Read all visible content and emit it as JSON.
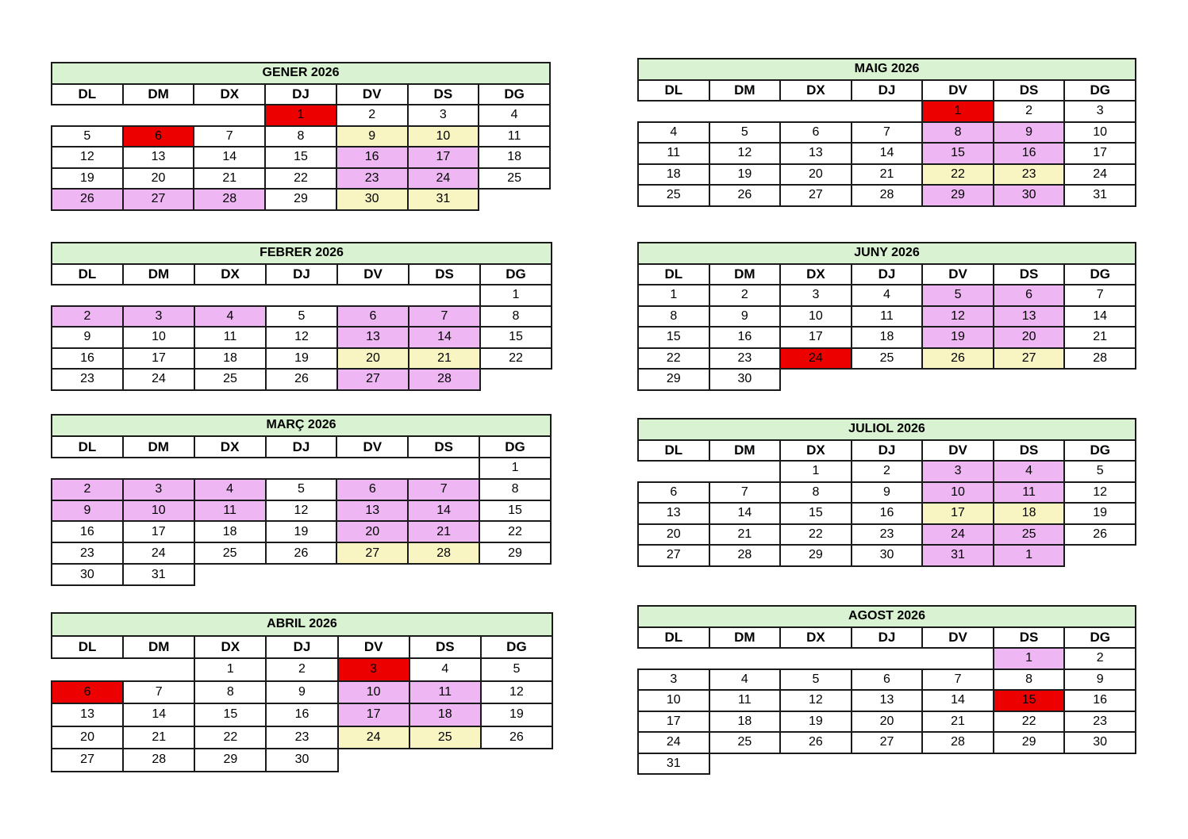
{
  "colors": {
    "holiday": "#ec0000",
    "pink": "#efb6f4",
    "yellow": "#f9f5c2",
    "header": "#d9f2d2"
  },
  "day_headers": [
    "DL",
    "DM",
    "DX",
    "DJ",
    "DV",
    "DS",
    "DG"
  ],
  "months": [
    {
      "title": "GENER 2026",
      "weeks": [
        [
          null,
          null,
          null,
          {
            "d": "1",
            "c": "red"
          },
          {
            "d": "2"
          },
          {
            "d": "3"
          },
          {
            "d": "4"
          }
        ],
        [
          {
            "d": "5"
          },
          {
            "d": "6",
            "c": "red"
          },
          {
            "d": "7"
          },
          {
            "d": "8"
          },
          {
            "d": "9",
            "c": "yellow"
          },
          {
            "d": "10",
            "c": "yellow"
          },
          {
            "d": "11"
          }
        ],
        [
          {
            "d": "12"
          },
          {
            "d": "13"
          },
          {
            "d": "14"
          },
          {
            "d": "15"
          },
          {
            "d": "16",
            "c": "pink"
          },
          {
            "d": "17",
            "c": "pink"
          },
          {
            "d": "18"
          }
        ],
        [
          {
            "d": "19"
          },
          {
            "d": "20"
          },
          {
            "d": "21"
          },
          {
            "d": "22"
          },
          {
            "d": "23",
            "c": "pink"
          },
          {
            "d": "24",
            "c": "pink"
          },
          {
            "d": "25"
          }
        ],
        [
          {
            "d": "26",
            "c": "pink"
          },
          {
            "d": "27",
            "c": "pink"
          },
          {
            "d": "28",
            "c": "pink"
          },
          {
            "d": "29"
          },
          {
            "d": "30",
            "c": "yellow"
          },
          {
            "d": "31",
            "c": "yellow"
          },
          null
        ]
      ]
    },
    {
      "title": "FEBRER 2026",
      "weeks": [
        [
          null,
          null,
          null,
          null,
          null,
          null,
          {
            "d": "1"
          }
        ],
        [
          {
            "d": "2",
            "c": "pink"
          },
          {
            "d": "3",
            "c": "pink"
          },
          {
            "d": "4",
            "c": "pink"
          },
          {
            "d": "5"
          },
          {
            "d": "6",
            "c": "pink"
          },
          {
            "d": "7",
            "c": "pink"
          },
          {
            "d": "8"
          }
        ],
        [
          {
            "d": "9"
          },
          {
            "d": "10"
          },
          {
            "d": "11"
          },
          {
            "d": "12"
          },
          {
            "d": "13",
            "c": "pink"
          },
          {
            "d": "14",
            "c": "pink"
          },
          {
            "d": "15"
          }
        ],
        [
          {
            "d": "16"
          },
          {
            "d": "17"
          },
          {
            "d": "18"
          },
          {
            "d": "19"
          },
          {
            "d": "20",
            "c": "yellow"
          },
          {
            "d": "21",
            "c": "yellow"
          },
          {
            "d": "22"
          }
        ],
        [
          {
            "d": "23"
          },
          {
            "d": "24"
          },
          {
            "d": "25"
          },
          {
            "d": "26"
          },
          {
            "d": "27",
            "c": "pink"
          },
          {
            "d": "28",
            "c": "pink"
          },
          null
        ]
      ]
    },
    {
      "title": "MARÇ 2026",
      "weeks": [
        [
          null,
          null,
          null,
          null,
          null,
          null,
          {
            "d": "1"
          }
        ],
        [
          {
            "d": "2",
            "c": "pink"
          },
          {
            "d": "3",
            "c": "pink"
          },
          {
            "d": "4",
            "c": "pink"
          },
          {
            "d": "5"
          },
          {
            "d": "6",
            "c": "pink"
          },
          {
            "d": "7",
            "c": "pink"
          },
          {
            "d": "8"
          }
        ],
        [
          {
            "d": "9",
            "c": "pink"
          },
          {
            "d": "10",
            "c": "pink"
          },
          {
            "d": "11",
            "c": "pink"
          },
          {
            "d": "12"
          },
          {
            "d": "13",
            "c": "pink"
          },
          {
            "d": "14",
            "c": "pink"
          },
          {
            "d": "15"
          }
        ],
        [
          {
            "d": "16"
          },
          {
            "d": "17"
          },
          {
            "d": "18"
          },
          {
            "d": "19"
          },
          {
            "d": "20",
            "c": "pink"
          },
          {
            "d": "21",
            "c": "pink"
          },
          {
            "d": "22"
          }
        ],
        [
          {
            "d": "23"
          },
          {
            "d": "24"
          },
          {
            "d": "25"
          },
          {
            "d": "26"
          },
          {
            "d": "27",
            "c": "yellow"
          },
          {
            "d": "28",
            "c": "yellow"
          },
          {
            "d": "29"
          }
        ],
        [
          {
            "d": "30"
          },
          {
            "d": "31"
          },
          null,
          null,
          null,
          null,
          null
        ]
      ]
    },
    {
      "title": "ABRIL 2026",
      "weeks": [
        [
          null,
          null,
          {
            "d": "1"
          },
          {
            "d": "2"
          },
          {
            "d": "3",
            "c": "red"
          },
          {
            "d": "4"
          },
          {
            "d": "5"
          }
        ],
        [
          {
            "d": "6",
            "c": "red"
          },
          {
            "d": "7"
          },
          {
            "d": "8"
          },
          {
            "d": "9"
          },
          {
            "d": "10",
            "c": "pink"
          },
          {
            "d": "11",
            "c": "pink"
          },
          {
            "d": "12"
          }
        ],
        [
          {
            "d": "13"
          },
          {
            "d": "14"
          },
          {
            "d": "15"
          },
          {
            "d": "16"
          },
          {
            "d": "17",
            "c": "pink"
          },
          {
            "d": "18",
            "c": "pink"
          },
          {
            "d": "19"
          }
        ],
        [
          {
            "d": "20"
          },
          {
            "d": "21"
          },
          {
            "d": "22"
          },
          {
            "d": "23"
          },
          {
            "d": "24",
            "c": "yellow"
          },
          {
            "d": "25",
            "c": "yellow"
          },
          {
            "d": "26"
          }
        ],
        [
          {
            "d": "27"
          },
          {
            "d": "28"
          },
          {
            "d": "29"
          },
          {
            "d": "30"
          },
          null,
          null,
          null
        ]
      ]
    },
    {
      "title": "MAIG 2026",
      "weeks": [
        [
          null,
          null,
          null,
          null,
          {
            "d": "1",
            "c": "red"
          },
          {
            "d": "2"
          },
          {
            "d": "3"
          }
        ],
        [
          {
            "d": "4"
          },
          {
            "d": "5"
          },
          {
            "d": "6"
          },
          {
            "d": "7"
          },
          {
            "d": "8",
            "c": "pink"
          },
          {
            "d": "9",
            "c": "pink"
          },
          {
            "d": "10"
          }
        ],
        [
          {
            "d": "11"
          },
          {
            "d": "12"
          },
          {
            "d": "13"
          },
          {
            "d": "14"
          },
          {
            "d": "15",
            "c": "pink"
          },
          {
            "d": "16",
            "c": "pink"
          },
          {
            "d": "17"
          }
        ],
        [
          {
            "d": "18"
          },
          {
            "d": "19"
          },
          {
            "d": "20"
          },
          {
            "d": "21"
          },
          {
            "d": "22",
            "c": "yellow"
          },
          {
            "d": "23",
            "c": "yellow"
          },
          {
            "d": "24"
          }
        ],
        [
          {
            "d": "25"
          },
          {
            "d": "26"
          },
          {
            "d": "27"
          },
          {
            "d": "28"
          },
          {
            "d": "29",
            "c": "pink"
          },
          {
            "d": "30",
            "c": "pink"
          },
          {
            "d": "31"
          }
        ]
      ]
    },
    {
      "title": "JUNY 2026",
      "weeks": [
        [
          {
            "d": "1"
          },
          {
            "d": "2"
          },
          {
            "d": "3"
          },
          {
            "d": "4"
          },
          {
            "d": "5",
            "c": "pink"
          },
          {
            "d": "6",
            "c": "pink"
          },
          {
            "d": "7"
          }
        ],
        [
          {
            "d": "8"
          },
          {
            "d": "9"
          },
          {
            "d": "10"
          },
          {
            "d": "11"
          },
          {
            "d": "12",
            "c": "pink"
          },
          {
            "d": "13",
            "c": "pink"
          },
          {
            "d": "14"
          }
        ],
        [
          {
            "d": "15"
          },
          {
            "d": "16"
          },
          {
            "d": "17"
          },
          {
            "d": "18"
          },
          {
            "d": "19",
            "c": "pink"
          },
          {
            "d": "20",
            "c": "pink"
          },
          {
            "d": "21"
          }
        ],
        [
          {
            "d": "22"
          },
          {
            "d": "23"
          },
          {
            "d": "24",
            "c": "red"
          },
          {
            "d": "25"
          },
          {
            "d": "26",
            "c": "yellow"
          },
          {
            "d": "27",
            "c": "yellow"
          },
          {
            "d": "28"
          }
        ],
        [
          {
            "d": "29"
          },
          {
            "d": "30"
          },
          null,
          null,
          null,
          null,
          null
        ]
      ]
    },
    {
      "title": "JULIOL 2026",
      "weeks": [
        [
          null,
          null,
          {
            "d": "1"
          },
          {
            "d": "2"
          },
          {
            "d": "3",
            "c": "pink"
          },
          {
            "d": "4",
            "c": "pink"
          },
          {
            "d": "5"
          }
        ],
        [
          {
            "d": "6"
          },
          {
            "d": "7"
          },
          {
            "d": "8"
          },
          {
            "d": "9"
          },
          {
            "d": "10",
            "c": "pink"
          },
          {
            "d": "11",
            "c": "pink"
          },
          {
            "d": "12"
          }
        ],
        [
          {
            "d": "13"
          },
          {
            "d": "14"
          },
          {
            "d": "15"
          },
          {
            "d": "16"
          },
          {
            "d": "17",
            "c": "yellow"
          },
          {
            "d": "18",
            "c": "yellow"
          },
          {
            "d": "19"
          }
        ],
        [
          {
            "d": "20"
          },
          {
            "d": "21"
          },
          {
            "d": "22"
          },
          {
            "d": "23"
          },
          {
            "d": "24",
            "c": "pink"
          },
          {
            "d": "25",
            "c": "pink"
          },
          {
            "d": "26"
          }
        ],
        [
          {
            "d": "27"
          },
          {
            "d": "28"
          },
          {
            "d": "29"
          },
          {
            "d": "30"
          },
          {
            "d": "31",
            "c": "pink"
          },
          {
            "d": "1",
            "c": "pink"
          },
          null
        ]
      ]
    },
    {
      "title": "AGOST 2026",
      "weeks": [
        [
          null,
          null,
          null,
          null,
          null,
          {
            "d": "1",
            "c": "pink"
          },
          {
            "d": "2"
          }
        ],
        [
          {
            "d": "3"
          },
          {
            "d": "4"
          },
          {
            "d": "5"
          },
          {
            "d": "6"
          },
          {
            "d": "7"
          },
          {
            "d": "8"
          },
          {
            "d": "9"
          }
        ],
        [
          {
            "d": "10"
          },
          {
            "d": "11"
          },
          {
            "d": "12"
          },
          {
            "d": "13"
          },
          {
            "d": "14"
          },
          {
            "d": "15",
            "c": "red"
          },
          {
            "d": "16"
          }
        ],
        [
          {
            "d": "17"
          },
          {
            "d": "18"
          },
          {
            "d": "19"
          },
          {
            "d": "20"
          },
          {
            "d": "21"
          },
          {
            "d": "22"
          },
          {
            "d": "23"
          }
        ],
        [
          {
            "d": "24"
          },
          {
            "d": "25"
          },
          {
            "d": "26"
          },
          {
            "d": "27"
          },
          {
            "d": "28"
          },
          {
            "d": "29"
          },
          {
            "d": "30"
          }
        ],
        [
          {
            "d": "31"
          },
          null,
          null,
          null,
          null,
          null,
          null
        ]
      ]
    }
  ]
}
